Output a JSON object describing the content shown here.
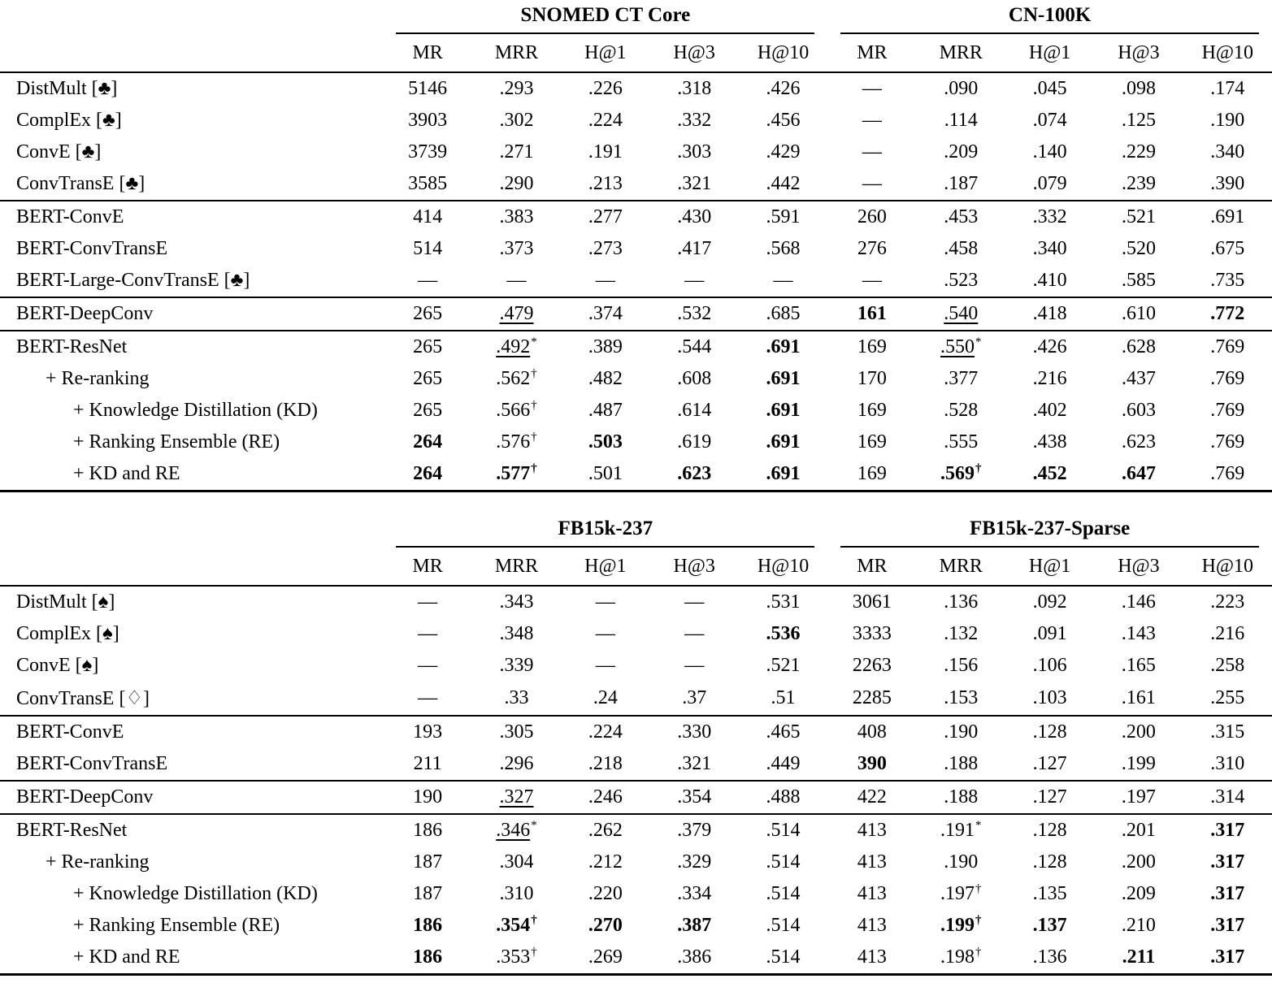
{
  "page": {
    "background": "#ffffff",
    "text_color": "#000000"
  },
  "tables": [
    {
      "name": "snomed-cn",
      "column_groups": [
        {
          "label": "SNOMED CT Core",
          "metrics": [
            "MR",
            "MRR",
            "H@1",
            "H@3",
            "H@10"
          ]
        },
        {
          "label": "CN-100K",
          "metrics": [
            "MR",
            "MRR",
            "H@1",
            "H@3",
            "H@10"
          ]
        }
      ],
      "row_groups": [
        {
          "rows": [
            {
              "label": "DistMult [♣]",
              "indent": 0,
              "cells": [
                "5146",
                ".293",
                ".226",
                ".318",
                ".426",
                "—",
                ".090",
                ".045",
                ".098",
                ".174"
              ]
            },
            {
              "label": "ComplEx [♣]",
              "indent": 0,
              "cells": [
                "3903",
                ".302",
                ".224",
                ".332",
                ".456",
                "—",
                ".114",
                ".074",
                ".125",
                ".190"
              ]
            },
            {
              "label": "ConvE [♣]",
              "indent": 0,
              "cells": [
                "3739",
                ".271",
                ".191",
                ".303",
                ".429",
                "—",
                ".209",
                ".140",
                ".229",
                ".340"
              ]
            },
            {
              "label": "ConvTransE [♣]",
              "indent": 0,
              "cells": [
                "3585",
                ".290",
                ".213",
                ".321",
                ".442",
                "—",
                ".187",
                ".079",
                ".239",
                ".390"
              ]
            }
          ]
        },
        {
          "rows": [
            {
              "label": "BERT-ConvE",
              "indent": 0,
              "cells": [
                "414",
                ".383",
                ".277",
                ".430",
                ".591",
                "260",
                ".453",
                ".332",
                ".521",
                ".691"
              ]
            },
            {
              "label": "BERT-ConvTransE",
              "indent": 0,
              "cells": [
                "514",
                ".373",
                ".273",
                ".417",
                ".568",
                "276",
                ".458",
                ".340",
                ".520",
                ".675"
              ]
            },
            {
              "label": "BERT-Large-ConvTransE [♣]",
              "indent": 0,
              "cells": [
                "—",
                "—",
                "—",
                "—",
                "—",
                "—",
                ".523",
                ".410",
                ".585",
                ".735"
              ]
            }
          ]
        },
        {
          "rows": [
            {
              "label": "BERT-DeepConv",
              "indent": 0,
              "cells": [
                "265",
                {
                  "t": ".479",
                  "u": true
                },
                ".374",
                ".532",
                ".685",
                {
                  "t": "161",
                  "b": true
                },
                {
                  "t": ".540",
                  "u": true
                },
                ".418",
                ".610",
                {
                  "t": ".772",
                  "b": true
                }
              ]
            }
          ]
        },
        {
          "rows": [
            {
              "label": "BERT-ResNet",
              "indent": 0,
              "cells": [
                "265",
                {
                  "t": ".492",
                  "u": true,
                  "sup": "*"
                },
                ".389",
                ".544",
                {
                  "t": ".691",
                  "b": true
                },
                "169",
                {
                  "t": ".550",
                  "u": true,
                  "sup": "*"
                },
                ".426",
                ".628",
                ".769"
              ]
            },
            {
              "label": "+ Re-ranking",
              "indent": 1,
              "cells": [
                "265",
                {
                  "t": ".562",
                  "sup": "†"
                },
                ".482",
                ".608",
                {
                  "t": ".691",
                  "b": true
                },
                "170",
                ".377",
                ".216",
                ".437",
                ".769"
              ]
            },
            {
              "label": "+ Knowledge Distillation (KD)",
              "indent": 2,
              "cells": [
                "265",
                {
                  "t": ".566",
                  "sup": "†"
                },
                ".487",
                ".614",
                {
                  "t": ".691",
                  "b": true
                },
                "169",
                ".528",
                ".402",
                ".603",
                ".769"
              ]
            },
            {
              "label": "+ Ranking Ensemble (RE)",
              "indent": 2,
              "cells": [
                {
                  "t": "264",
                  "b": true
                },
                {
                  "t": ".576",
                  "sup": "†"
                },
                {
                  "t": ".503",
                  "b": true
                },
                ".619",
                {
                  "t": ".691",
                  "b": true
                },
                "169",
                ".555",
                ".438",
                ".623",
                ".769"
              ]
            },
            {
              "label": "+ KD and RE",
              "indent": 2,
              "cells": [
                {
                  "t": "264",
                  "b": true
                },
                {
                  "t": ".577",
                  "b": true,
                  "sup": "†"
                },
                ".501",
                {
                  "t": ".623",
                  "b": true
                },
                {
                  "t": ".691",
                  "b": true
                },
                "169",
                {
                  "t": ".569",
                  "b": true,
                  "sup": "†"
                },
                {
                  "t": ".452",
                  "b": true
                },
                {
                  "t": ".647",
                  "b": true
                },
                ".769"
              ]
            }
          ]
        }
      ]
    },
    {
      "name": "fb15k",
      "column_groups": [
        {
          "label": "FB15k-237",
          "metrics": [
            "MR",
            "MRR",
            "H@1",
            "H@3",
            "H@10"
          ]
        },
        {
          "label": "FB15k-237-Sparse",
          "metrics": [
            "MR",
            "MRR",
            "H@1",
            "H@3",
            "H@10"
          ]
        }
      ],
      "row_groups": [
        {
          "rows": [
            {
              "label": "DistMult [♠]",
              "indent": 0,
              "cells": [
                "—",
                ".343",
                "—",
                "—",
                ".531",
                "3061",
                ".136",
                ".092",
                ".146",
                ".223"
              ]
            },
            {
              "label": "ComplEx [♠]",
              "indent": 0,
              "cells": [
                "—",
                ".348",
                "—",
                "—",
                {
                  "t": ".536",
                  "b": true
                },
                "3333",
                ".132",
                ".091",
                ".143",
                ".216"
              ]
            },
            {
              "label": "ConvE [♠]",
              "indent": 0,
              "cells": [
                "—",
                ".339",
                "—",
                "—",
                ".521",
                "2263",
                ".156",
                ".106",
                ".165",
                ".258"
              ]
            },
            {
              "label": "ConvTransE [♢]",
              "indent": 0,
              "cells": [
                "—",
                ".33",
                ".24",
                ".37",
                ".51",
                "2285",
                ".153",
                ".103",
                ".161",
                ".255"
              ]
            }
          ]
        },
        {
          "rows": [
            {
              "label": "BERT-ConvE",
              "indent": 0,
              "cells": [
                "193",
                ".305",
                ".224",
                ".330",
                ".465",
                "408",
                ".190",
                ".128",
                ".200",
                ".315"
              ]
            },
            {
              "label": "BERT-ConvTransE",
              "indent": 0,
              "cells": [
                "211",
                ".296",
                ".218",
                ".321",
                ".449",
                {
                  "t": "390",
                  "b": true
                },
                ".188",
                ".127",
                ".199",
                ".310"
              ]
            }
          ]
        },
        {
          "rows": [
            {
              "label": "BERT-DeepConv",
              "indent": 0,
              "cells": [
                "190",
                {
                  "t": ".327",
                  "u": true
                },
                ".246",
                ".354",
                ".488",
                "422",
                ".188",
                ".127",
                ".197",
                ".314"
              ]
            }
          ]
        },
        {
          "rows": [
            {
              "label": "BERT-ResNet",
              "indent": 0,
              "cells": [
                "186",
                {
                  "t": ".346",
                  "u": true,
                  "sup": "*"
                },
                ".262",
                ".379",
                ".514",
                "413",
                {
                  "t": ".191",
                  "sup": "*"
                },
                ".128",
                ".201",
                {
                  "t": ".317",
                  "b": true
                }
              ]
            },
            {
              "label": "+ Re-ranking",
              "indent": 1,
              "cells": [
                "187",
                ".304",
                ".212",
                ".329",
                ".514",
                "413",
                ".190",
                ".128",
                ".200",
                {
                  "t": ".317",
                  "b": true
                }
              ]
            },
            {
              "label": "+ Knowledge Distillation (KD)",
              "indent": 2,
              "cells": [
                "187",
                ".310",
                ".220",
                ".334",
                ".514",
                "413",
                {
                  "t": ".197",
                  "sup": "†"
                },
                ".135",
                ".209",
                {
                  "t": ".317",
                  "b": true
                }
              ]
            },
            {
              "label": "+ Ranking Ensemble (RE)",
              "indent": 2,
              "cells": [
                {
                  "t": "186",
                  "b": true
                },
                {
                  "t": ".354",
                  "b": true,
                  "sup": "†"
                },
                {
                  "t": ".270",
                  "b": true
                },
                {
                  "t": ".387",
                  "b": true
                },
                ".514",
                "413",
                {
                  "t": ".199",
                  "b": true,
                  "sup": "†"
                },
                {
                  "t": ".137",
                  "b": true
                },
                ".210",
                {
                  "t": ".317",
                  "b": true
                }
              ]
            },
            {
              "label": "+ KD and RE",
              "indent": 2,
              "cells": [
                {
                  "t": "186",
                  "b": true
                },
                {
                  "t": ".353",
                  "sup": "†"
                },
                ".269",
                ".386",
                ".514",
                "413",
                {
                  "t": ".198",
                  "sup": "†"
                },
                ".136",
                {
                  "t": ".211",
                  "b": true
                },
                {
                  "t": ".317",
                  "b": true
                }
              ]
            }
          ]
        }
      ]
    }
  ]
}
